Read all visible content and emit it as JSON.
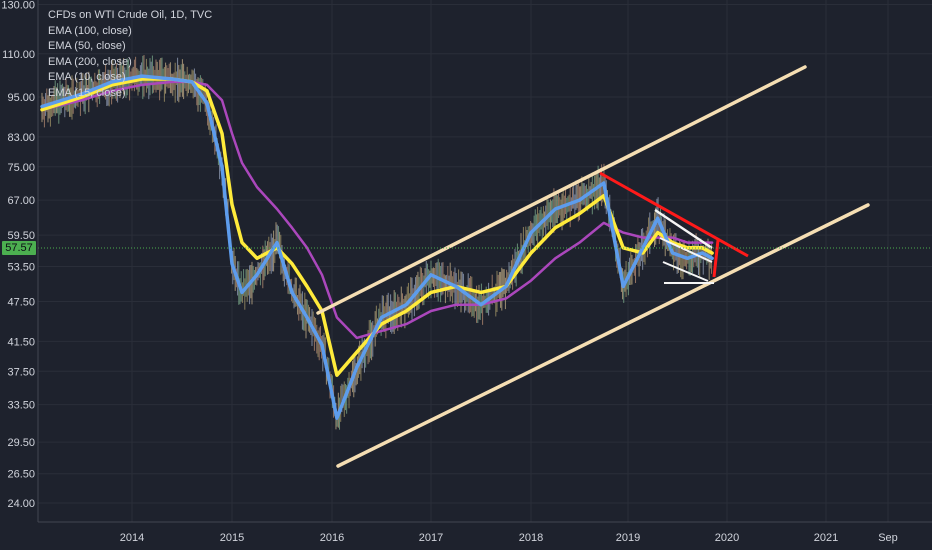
{
  "legend": {
    "title": "CFDs on WTI Crude Oil, 1D, TVC",
    "items": [
      "EMA (100, close)",
      "EMA (50, close)",
      "EMA (200, close)",
      "EMA (10, close)",
      "EMA (15, close)"
    ]
  },
  "current_price_label": "57.57",
  "colors": {
    "background": "#1e222d",
    "ema_yellow": "#ffeb3b",
    "ema_blue": "#2196f3",
    "ema_purple": "#9c27b0",
    "channel": "#f5deb3",
    "red_trend": "#ff1a1a",
    "price_line": "#4caf50"
  },
  "chart_data": {
    "type": "line",
    "y_scale": "log",
    "yticks": [
      "130.00",
      "110.00",
      "95.00",
      "83.00",
      "75.00",
      "67.00",
      "59.50",
      "53.50",
      "47.50",
      "41.50",
      "37.50",
      "33.50",
      "29.50",
      "26.50",
      "24.00"
    ],
    "xticks": [
      "2014",
      "2015",
      "2016",
      "2017",
      "2018",
      "2019",
      "2020",
      "2021",
      "Sep"
    ],
    "ylim": [
      22.5,
      132
    ],
    "xlim": [
      2013.1,
      2020.95
    ],
    "current_price": 57.57,
    "series": [
      {
        "name": "EMA (10, close)",
        "color": "#5d9cec",
        "x": [
          2013.1,
          2013.5,
          2013.8,
          2014.1,
          2014.4,
          2014.6,
          2014.75,
          2014.9,
          2015.0,
          2015.1,
          2015.25,
          2015.45,
          2015.6,
          2015.75,
          2015.9,
          2016.05,
          2016.25,
          2016.5,
          2016.75,
          2017.0,
          2017.25,
          2017.5,
          2017.75,
          2018.0,
          2018.25,
          2018.5,
          2018.75,
          2018.95,
          2019.15,
          2019.3,
          2019.45,
          2019.6,
          2019.75,
          2019.85
        ],
        "y": [
          92,
          96,
          100,
          102,
          101,
          100,
          93,
          75,
          54,
          49,
          52,
          58,
          49,
          45,
          41,
          32,
          38,
          45,
          47,
          52,
          50,
          47,
          50,
          60,
          65,
          67,
          71,
          50,
          57,
          63,
          56,
          55,
          56,
          55
        ]
      },
      {
        "name": "EMA (50, close)",
        "color": "#ffeb3b",
        "x": [
          2013.1,
          2013.5,
          2013.8,
          2014.1,
          2014.4,
          2014.6,
          2014.75,
          2014.9,
          2015.0,
          2015.1,
          2015.25,
          2015.45,
          2015.6,
          2015.75,
          2015.9,
          2016.05,
          2016.25,
          2016.5,
          2016.75,
          2017.0,
          2017.25,
          2017.5,
          2017.75,
          2018.0,
          2018.25,
          2018.5,
          2018.75,
          2018.95,
          2019.15,
          2019.3,
          2019.45,
          2019.6,
          2019.75,
          2019.85
        ],
        "y": [
          91,
          95,
          99,
          101,
          101,
          100,
          97,
          84,
          66,
          58,
          55,
          57,
          54,
          50,
          46,
          37,
          40,
          44,
          46,
          49,
          50,
          49,
          50,
          56,
          61,
          64,
          68,
          57,
          56,
          60,
          58,
          57,
          57,
          56
        ]
      },
      {
        "name": "EMA (200, close)",
        "color": "#ab47bc",
        "x": [
          2013.1,
          2013.5,
          2013.8,
          2014.1,
          2014.4,
          2014.6,
          2014.75,
          2014.9,
          2015.0,
          2015.1,
          2015.25,
          2015.45,
          2015.6,
          2015.75,
          2015.9,
          2016.05,
          2016.25,
          2016.5,
          2016.75,
          2017.0,
          2017.25,
          2017.5,
          2017.75,
          2018.0,
          2018.25,
          2018.5,
          2018.75,
          2018.95,
          2019.15,
          2019.3,
          2019.45,
          2019.6,
          2019.75,
          2019.85
        ],
        "y": [
          91,
          94,
          97,
          99,
          100,
          100,
          99,
          94,
          84,
          76,
          70,
          65,
          61,
          57,
          52,
          45,
          42,
          43,
          44,
          46,
          47,
          47,
          48,
          51,
          55,
          58,
          62,
          60,
          59,
          59,
          59,
          58,
          58,
          58
        ]
      }
    ]
  }
}
